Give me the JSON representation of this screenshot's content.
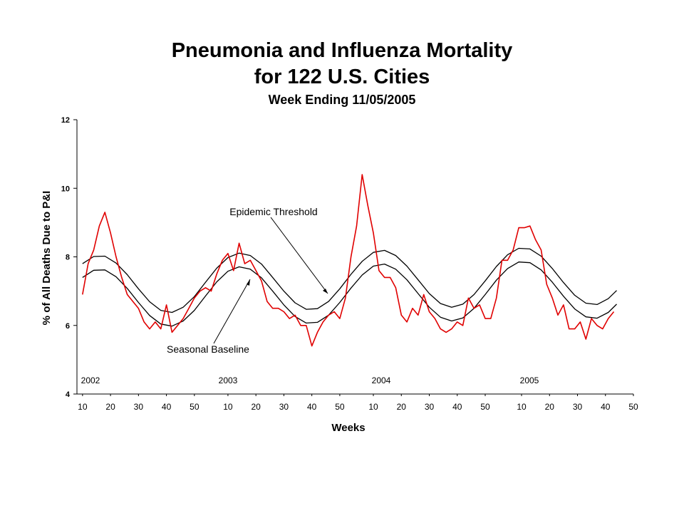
{
  "chart_data": {
    "type": "line",
    "title": "Pneumonia and Influenza Mortality",
    "title_line2": "for 122 U.S. Cities",
    "subtitle": "Week Ending 11/05/2005",
    "x_label": "Weeks",
    "y_label": "% of All Deaths Due to P&I",
    "year_labels": [
      "2002",
      "2003",
      "2004",
      "2005"
    ],
    "xlim": [
      -2,
      197
    ],
    "ylim": [
      4,
      12
    ],
    "yticks": [
      4,
      6,
      8,
      10,
      12
    ],
    "xticks": [
      {
        "value": 0,
        "label": "10"
      },
      {
        "value": 10,
        "label": "20"
      },
      {
        "value": 20,
        "label": "30"
      },
      {
        "value": 30,
        "label": "40"
      },
      {
        "value": 40,
        "label": "50"
      },
      {
        "value": 52,
        "label": "10"
      },
      {
        "value": 62,
        "label": "20"
      },
      {
        "value": 72,
        "label": "30"
      },
      {
        "value": 82,
        "label": "40"
      },
      {
        "value": 92,
        "label": "50"
      },
      {
        "value": 104,
        "label": "10"
      },
      {
        "value": 114,
        "label": "20"
      },
      {
        "value": 124,
        "label": "30"
      },
      {
        "value": 134,
        "label": "40"
      },
      {
        "value": 144,
        "label": "50"
      },
      {
        "value": 157,
        "label": "10"
      },
      {
        "value": 167,
        "label": "20"
      },
      {
        "value": 177,
        "label": "30"
      },
      {
        "value": 187,
        "label": "40"
      },
      {
        "value": 197,
        "label": "50"
      }
    ],
    "grid": false,
    "series": [
      {
        "color": "#e00000",
        "x": [
          0,
          2,
          4,
          6,
          8,
          10,
          12,
          14,
          16,
          18,
          20,
          22,
          24,
          26,
          28,
          30,
          32,
          34,
          36,
          38,
          40,
          42,
          44,
          46,
          48,
          50,
          52,
          54,
          56,
          58,
          60,
          62,
          64,
          66,
          68,
          70,
          72,
          74,
          76,
          78,
          80,
          82,
          84,
          86,
          88,
          90,
          92,
          94,
          96,
          98,
          100,
          102,
          104,
          106,
          108,
          110,
          112,
          114,
          116,
          118,
          120,
          122,
          124,
          126,
          128,
          130,
          132,
          134,
          136,
          138,
          140,
          142,
          144,
          146,
          148,
          150,
          152,
          154,
          156,
          158,
          160,
          162,
          164,
          166,
          168,
          170,
          172,
          174,
          176,
          178,
          180,
          182,
          184,
          186,
          188,
          190
        ],
        "values": [
          6.9,
          7.8,
          8.2,
          8.9,
          9.3,
          8.7,
          8.0,
          7.4,
          6.9,
          6.7,
          6.5,
          6.1,
          5.9,
          6.1,
          5.9,
          6.6,
          5.8,
          6.0,
          6.2,
          6.5,
          6.8,
          7.0,
          7.1,
          7.0,
          7.5,
          7.9,
          8.1,
          7.6,
          8.4,
          7.8,
          7.9,
          7.6,
          7.3,
          6.7,
          6.5,
          6.5,
          6.4,
          6.2,
          6.3,
          6.0,
          6.0,
          5.4,
          5.8,
          6.1,
          6.3,
          6.4,
          6.2,
          6.8,
          8.0,
          8.9,
          10.4,
          9.5,
          8.7,
          7.6,
          7.4,
          7.4,
          7.1,
          6.3,
          6.1,
          6.5,
          6.3,
          6.9,
          6.4,
          6.2,
          5.9,
          5.8,
          5.9,
          6.1,
          6.0,
          6.8,
          6.5,
          6.6,
          6.2,
          6.2,
          6.8,
          7.9,
          7.9,
          8.2,
          8.85,
          8.85,
          8.9,
          8.5,
          8.2,
          7.2,
          6.8,
          6.3,
          6.6,
          5.9,
          5.9,
          6.1,
          5.6,
          6.2,
          6.0,
          5.9,
          6.2,
          6.4
        ]
      },
      {
        "name": "Epidemic Threshold",
        "color": "#000000",
        "x": [
          0,
          4,
          8,
          12,
          16,
          20,
          24,
          28,
          32,
          36,
          40,
          44,
          48,
          52,
          56,
          60,
          64,
          68,
          72,
          76,
          80,
          84,
          88,
          92,
          96,
          100,
          104,
          108,
          112,
          116,
          120,
          124,
          128,
          132,
          136,
          140,
          144,
          148,
          152,
          156,
          160,
          164,
          168,
          172,
          176,
          180,
          184,
          188,
          191
        ],
        "values": [
          7.8,
          8.01,
          8.02,
          7.82,
          7.48,
          7.07,
          6.69,
          6.44,
          6.38,
          6.53,
          6.84,
          7.26,
          7.67,
          7.98,
          8.11,
          8.04,
          7.79,
          7.4,
          7.0,
          6.66,
          6.47,
          6.49,
          6.7,
          7.07,
          7.49,
          7.87,
          8.13,
          8.19,
          8.04,
          7.73,
          7.33,
          6.93,
          6.64,
          6.53,
          6.62,
          6.9,
          7.3,
          7.72,
          8.06,
          8.25,
          8.23,
          8.02,
          7.66,
          7.25,
          6.88,
          6.65,
          6.61,
          6.78,
          7.02
        ]
      },
      {
        "name": "Seasonal Baseline",
        "color": "#000000",
        "x": [
          0,
          4,
          8,
          12,
          16,
          20,
          24,
          28,
          32,
          36,
          40,
          44,
          48,
          52,
          56,
          60,
          64,
          68,
          72,
          76,
          80,
          84,
          88,
          92,
          96,
          100,
          104,
          108,
          112,
          116,
          120,
          124,
          128,
          132,
          136,
          140,
          144,
          148,
          152,
          156,
          160,
          164,
          168,
          172,
          176,
          180,
          184,
          188,
          191
        ],
        "values": [
          7.4,
          7.61,
          7.62,
          7.42,
          7.08,
          6.67,
          6.29,
          6.04,
          5.98,
          6.13,
          6.44,
          6.86,
          7.27,
          7.58,
          7.71,
          7.64,
          7.39,
          7.0,
          6.6,
          6.26,
          6.07,
          6.09,
          6.3,
          6.67,
          7.09,
          7.47,
          7.73,
          7.79,
          7.64,
          7.33,
          6.93,
          6.53,
          6.24,
          6.13,
          6.22,
          6.5,
          6.9,
          7.32,
          7.66,
          7.85,
          7.83,
          7.62,
          7.26,
          6.85,
          6.48,
          6.25,
          6.21,
          6.38,
          6.62
        ]
      }
    ]
  }
}
